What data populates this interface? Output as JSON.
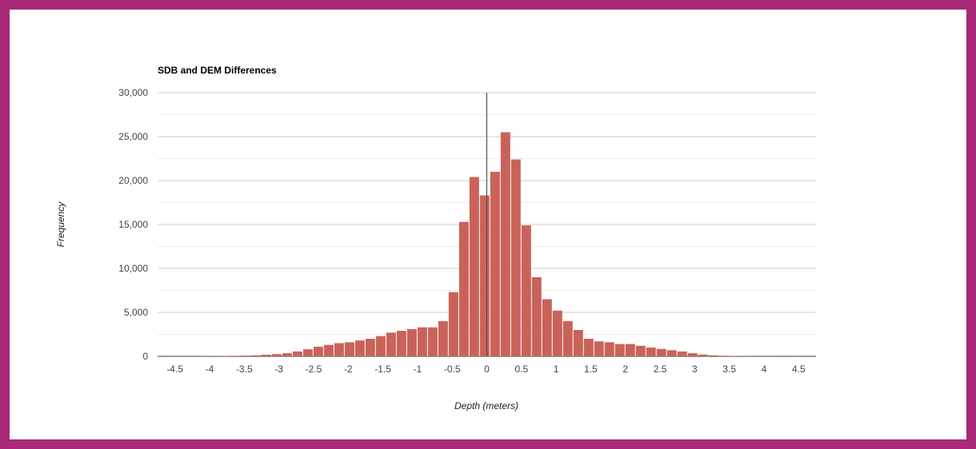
{
  "chart_data": {
    "type": "bar",
    "title": "SDB and DEM Differences",
    "xlabel": "Depth (meters)",
    "ylabel": "Frequency",
    "ylim": [
      0,
      30000
    ],
    "xlim": [
      -4.75,
      4.75
    ],
    "bin_width": 0.15,
    "y_ticks": [
      {
        "value": 0,
        "label": "0"
      },
      {
        "value": 5000,
        "label": "5,000"
      },
      {
        "value": 10000,
        "label": "10,000"
      },
      {
        "value": 15000,
        "label": "15,000"
      },
      {
        "value": 20000,
        "label": "20,000"
      },
      {
        "value": 25000,
        "label": "25,000"
      },
      {
        "value": 30000,
        "label": "30,000"
      }
    ],
    "x_ticks": [
      {
        "value": -4.5,
        "label": "-4.5"
      },
      {
        "value": -4,
        "label": "-4"
      },
      {
        "value": -3.5,
        "label": "-3.5"
      },
      {
        "value": -3,
        "label": "-3"
      },
      {
        "value": -2.5,
        "label": "-2.5"
      },
      {
        "value": -2,
        "label": "-2"
      },
      {
        "value": -1.5,
        "label": "-1.5"
      },
      {
        "value": -1,
        "label": "-1"
      },
      {
        "value": -0.5,
        "label": "-0.5"
      },
      {
        "value": 0,
        "label": "0"
      },
      {
        "value": 0.5,
        "label": "0.5"
      },
      {
        "value": 1,
        "label": "1"
      },
      {
        "value": 1.5,
        "label": "1.5"
      },
      {
        "value": 2,
        "label": "2"
      },
      {
        "value": 2.5,
        "label": "2.5"
      },
      {
        "value": 3,
        "label": "3"
      },
      {
        "value": 3.5,
        "label": "3.5"
      },
      {
        "value": 4,
        "label": "4"
      },
      {
        "value": 4.5,
        "label": "4.5"
      }
    ],
    "grid": true,
    "bar_color": "#c9635a",
    "bins": [
      {
        "x": -4.75,
        "y": 5
      },
      {
        "x": -4.6,
        "y": 10
      },
      {
        "x": -4.45,
        "y": 10
      },
      {
        "x": -4.3,
        "y": 15
      },
      {
        "x": -4.15,
        "y": 20
      },
      {
        "x": -4.0,
        "y": 30
      },
      {
        "x": -3.85,
        "y": 40
      },
      {
        "x": -3.7,
        "y": 60
      },
      {
        "x": -3.55,
        "y": 80
      },
      {
        "x": -3.4,
        "y": 120
      },
      {
        "x": -3.25,
        "y": 180
      },
      {
        "x": -3.1,
        "y": 250
      },
      {
        "x": -2.95,
        "y": 350
      },
      {
        "x": -2.8,
        "y": 550
      },
      {
        "x": -2.65,
        "y": 800
      },
      {
        "x": -2.5,
        "y": 1100
      },
      {
        "x": -2.35,
        "y": 1300
      },
      {
        "x": -2.2,
        "y": 1500
      },
      {
        "x": -2.05,
        "y": 1600
      },
      {
        "x": -1.9,
        "y": 1800
      },
      {
        "x": -1.75,
        "y": 2000
      },
      {
        "x": -1.6,
        "y": 2300
      },
      {
        "x": -1.45,
        "y": 2700
      },
      {
        "x": -1.3,
        "y": 2900
      },
      {
        "x": -1.15,
        "y": 3100
      },
      {
        "x": -1.0,
        "y": 3300
      },
      {
        "x": -0.85,
        "y": 3300
      },
      {
        "x": -0.7,
        "y": 4000
      },
      {
        "x": -0.55,
        "y": 7300
      },
      {
        "x": -0.4,
        "y": 15300
      },
      {
        "x": -0.25,
        "y": 20400
      },
      {
        "x": -0.1,
        "y": 18300
      },
      {
        "x": 0.05,
        "y": 21000
      },
      {
        "x": 0.2,
        "y": 25500
      },
      {
        "x": 0.35,
        "y": 22400
      },
      {
        "x": 0.5,
        "y": 14900
      },
      {
        "x": 0.65,
        "y": 9000
      },
      {
        "x": 0.8,
        "y": 6500
      },
      {
        "x": 0.95,
        "y": 5200
      },
      {
        "x": 1.1,
        "y": 4000
      },
      {
        "x": 1.25,
        "y": 3000
      },
      {
        "x": 1.4,
        "y": 2000
      },
      {
        "x": 1.55,
        "y": 1700
      },
      {
        "x": 1.7,
        "y": 1600
      },
      {
        "x": 1.85,
        "y": 1400
      },
      {
        "x": 2.0,
        "y": 1400
      },
      {
        "x": 2.15,
        "y": 1200
      },
      {
        "x": 2.3,
        "y": 1000
      },
      {
        "x": 2.45,
        "y": 850
      },
      {
        "x": 2.6,
        "y": 700
      },
      {
        "x": 2.75,
        "y": 550
      },
      {
        "x": 2.9,
        "y": 350
      },
      {
        "x": 3.05,
        "y": 200
      },
      {
        "x": 3.2,
        "y": 120
      },
      {
        "x": 3.35,
        "y": 70
      },
      {
        "x": 3.5,
        "y": 40
      },
      {
        "x": 3.65,
        "y": 25
      },
      {
        "x": 3.8,
        "y": 15
      },
      {
        "x": 3.95,
        "y": 10
      },
      {
        "x": 4.1,
        "y": 5
      },
      {
        "x": 4.25,
        "y": 5
      },
      {
        "x": 4.4,
        "y": 5
      },
      {
        "x": 4.55,
        "y": 5
      }
    ]
  }
}
